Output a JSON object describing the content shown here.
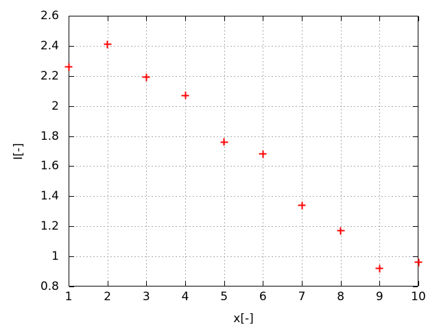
{
  "figure": {
    "background_color": "#ffffff",
    "border_color": "#000000",
    "text_color": "#000000"
  },
  "chart_data": {
    "type": "scatter",
    "title": "",
    "xlabel": "x[-]",
    "ylabel": "I[-]",
    "x": [
      1,
      2,
      3,
      4,
      5,
      6,
      7,
      8,
      9,
      10
    ],
    "y": [
      2.26,
      2.41,
      2.19,
      2.07,
      1.76,
      1.68,
      1.34,
      1.17,
      0.92,
      0.96
    ],
    "xlim": [
      1,
      10
    ],
    "ylim": [
      0.8,
      2.6
    ],
    "xticks": [
      1,
      2,
      3,
      4,
      5,
      6,
      7,
      8,
      9,
      10
    ],
    "xtick_labels": [
      "1",
      "2",
      "3",
      "4",
      "5",
      "6",
      "7",
      "8",
      "9",
      "10"
    ],
    "yticks": [
      0.8,
      1.0,
      1.2,
      1.4,
      1.6,
      1.8,
      2.0,
      2.2,
      2.4,
      2.6
    ],
    "ytick_labels": [
      "0.8",
      "1",
      "1.2",
      "1.4",
      "1.6",
      "1.8",
      "2",
      "2.2",
      "2.4",
      "2.6"
    ],
    "grid": "on",
    "grid_style": "dotted",
    "grid_color": "#aaaaaa",
    "marker": "plus",
    "marker_color": "#ff0000",
    "legend": "none",
    "tick_style": "inward-mirrored"
  }
}
